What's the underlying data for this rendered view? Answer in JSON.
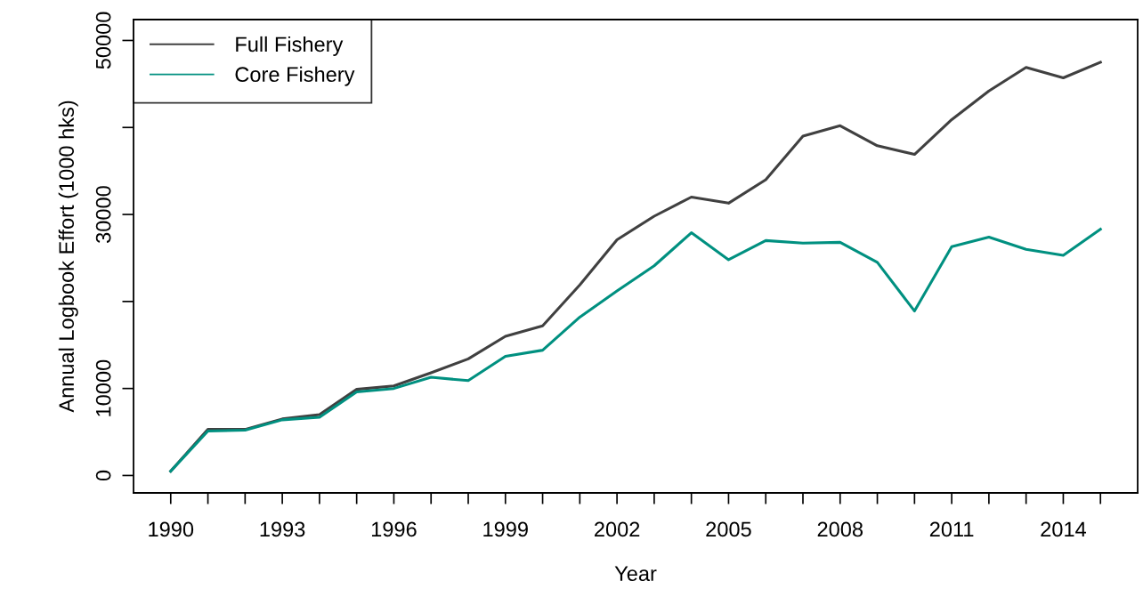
{
  "chart_data": {
    "type": "line",
    "xlabel": "Year",
    "ylabel": "Annual Logbook Effort (1000 hks)",
    "x": [
      1990,
      1991,
      1992,
      1993,
      1994,
      1995,
      1996,
      1997,
      1998,
      1999,
      2000,
      2001,
      2002,
      2003,
      2004,
      2005,
      2006,
      2007,
      2008,
      2009,
      2010,
      2011,
      2012,
      2013,
      2014,
      2015
    ],
    "series": [
      {
        "name": "Full Fishery",
        "color": "#404040",
        "values": [
          500,
          5300,
          5300,
          6500,
          7000,
          9900,
          10300,
          11800,
          13400,
          16000,
          17200,
          21900,
          27100,
          29800,
          32000,
          31300,
          34000,
          39000,
          40200,
          37900,
          36900,
          40900,
          44200,
          46900,
          45700,
          47500
        ]
      },
      {
        "name": "Core Fishery",
        "color": "#009080",
        "values": [
          500,
          5100,
          5200,
          6400,
          6700,
          9600,
          10000,
          11300,
          10900,
          13700,
          14400,
          18200,
          21200,
          24100,
          27900,
          24800,
          27000,
          26700,
          26800,
          24500,
          18900,
          26300,
          27400,
          26000,
          25300,
          28300
        ]
      }
    ],
    "xlim": [
      1989,
      2016
    ],
    "xticks": [
      1990,
      {
        "value": 1991,
        "label": null
      },
      {
        "value": 1992,
        "label": null
      },
      1993,
      {
        "value": 1994,
        "label": null
      },
      {
        "value": 1995,
        "label": null
      },
      1996,
      {
        "value": 1997,
        "label": null
      },
      {
        "value": 1998,
        "label": null
      },
      1999,
      {
        "value": 2000,
        "label": null
      },
      {
        "value": 2001,
        "label": null
      },
      2002,
      {
        "value": 2003,
        "label": null
      },
      {
        "value": 2004,
        "label": null
      },
      2005,
      {
        "value": 2006,
        "label": null
      },
      {
        "value": 2007,
        "label": null
      },
      2008,
      {
        "value": 2009,
        "label": null
      },
      {
        "value": 2010,
        "label": null
      },
      2011,
      {
        "value": 2012,
        "label": null
      },
      {
        "value": 2013,
        "label": null
      },
      2014,
      {
        "value": 2015,
        "label": null
      }
    ],
    "ylim": [
      -2000,
      52400
    ],
    "yticks": [
      0,
      10000,
      {
        "value": 20000,
        "label": null
      },
      30000,
      {
        "value": 40000,
        "label": null
      },
      50000
    ],
    "grid": false,
    "legend": "top left",
    "line_style": "solid",
    "marker": "none"
  }
}
